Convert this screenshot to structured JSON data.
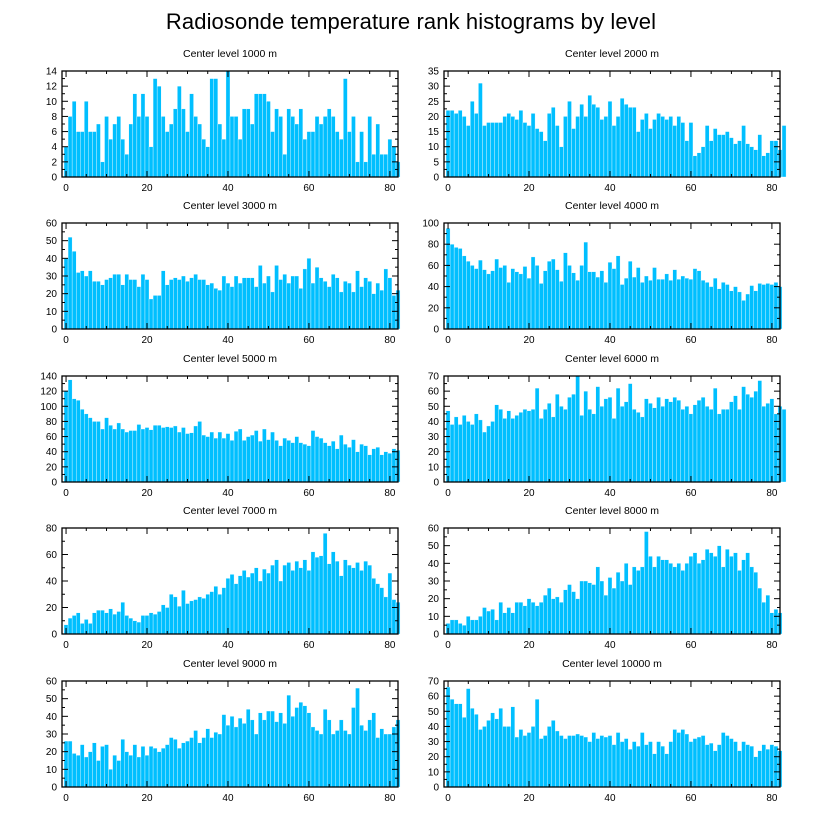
{
  "title": "Radiosonde temperature rank histograms by level",
  "colors": {
    "bar": "#00bfff",
    "axis": "#000000",
    "background": "#ffffff"
  },
  "chart_data": [
    {
      "type": "bar",
      "title": "Center level 1000 m",
      "xlim": [
        -1,
        82
      ],
      "ylim": [
        0,
        14
      ],
      "xticks": [
        0,
        20,
        40,
        60,
        80
      ],
      "yticks": [
        0,
        2,
        4,
        6,
        8,
        10,
        12,
        14
      ],
      "values": [
        4,
        8,
        10,
        6,
        6,
        10,
        6,
        6,
        7,
        2,
        8,
        5,
        7,
        8,
        5,
        3,
        7,
        11,
        8,
        11,
        8,
        4,
        13,
        12,
        8,
        6,
        7,
        9,
        12,
        9,
        6,
        11,
        8,
        7,
        5,
        4,
        13,
        13,
        7,
        5,
        14,
        8,
        8,
        5,
        9,
        9,
        7,
        11,
        11,
        11,
        10,
        6,
        9,
        8,
        3,
        9,
        8,
        7,
        9,
        5,
        6,
        6,
        8,
        7,
        8,
        9,
        8,
        6,
        5,
        13,
        6,
        8,
        2,
        6,
        2,
        8,
        3,
        7,
        3,
        3,
        5,
        4,
        2
      ]
    },
    {
      "type": "bar",
      "title": "Center level 2000 m",
      "xlim": [
        -1,
        82
      ],
      "ylim": [
        0,
        35
      ],
      "xticks": [
        0,
        20,
        40,
        60,
        80
      ],
      "yticks": [
        0,
        5,
        10,
        15,
        20,
        25,
        30,
        35
      ],
      "values": [
        22,
        22,
        21,
        22,
        20,
        17,
        25,
        21,
        31,
        17,
        18,
        18,
        18,
        18,
        20,
        21,
        20,
        19,
        22,
        18,
        17,
        21,
        16,
        15,
        12,
        21,
        23,
        17,
        10,
        20,
        25,
        16,
        20,
        24,
        20,
        27,
        24,
        23,
        19,
        20,
        25,
        17,
        20,
        26,
        24,
        23,
        23,
        15,
        19,
        21,
        16,
        19,
        21,
        20,
        19,
        20,
        17,
        20,
        18,
        12,
        18,
        7,
        8,
        10,
        17,
        12,
        16,
        14,
        14,
        15,
        13,
        11,
        12,
        17,
        11,
        10,
        9,
        14,
        7,
        8,
        12,
        12,
        9,
        17
      ]
    },
    {
      "type": "bar",
      "title": "Center level 3000 m",
      "xlim": [
        -1,
        82
      ],
      "ylim": [
        0,
        60
      ],
      "xticks": [
        0,
        20,
        40,
        60,
        80
      ],
      "yticks": [
        0,
        10,
        20,
        30,
        40,
        50,
        60
      ],
      "values": [
        40,
        52,
        44,
        32,
        33,
        30,
        33,
        27,
        27,
        25,
        28,
        29,
        31,
        31,
        25,
        31,
        28,
        28,
        24,
        31,
        28,
        17,
        19,
        19,
        33,
        25,
        28,
        29,
        28,
        30,
        27,
        29,
        31,
        28,
        28,
        25,
        26,
        23,
        22,
        30,
        26,
        24,
        30,
        26,
        29,
        29,
        29,
        24,
        36,
        26,
        30,
        21,
        36,
        28,
        31,
        26,
        30,
        30,
        23,
        34,
        40,
        26,
        35,
        29,
        27,
        24,
        31,
        29,
        21,
        27,
        26,
        21,
        33,
        24,
        29,
        27,
        20,
        26,
        22,
        34,
        29,
        19,
        22
      ]
    },
    {
      "type": "bar",
      "title": "Center level 4000 m",
      "xlim": [
        -1,
        82
      ],
      "ylim": [
        0,
        100
      ],
      "xticks": [
        0,
        20,
        40,
        60,
        80
      ],
      "yticks": [
        0,
        20,
        40,
        60,
        80,
        100
      ],
      "values": [
        95,
        80,
        77,
        76,
        69,
        64,
        60,
        57,
        65,
        56,
        52,
        55,
        66,
        58,
        60,
        44,
        57,
        54,
        52,
        59,
        48,
        68,
        60,
        43,
        55,
        64,
        66,
        56,
        45,
        72,
        60,
        53,
        46,
        60,
        82,
        54,
        54,
        49,
        55,
        44,
        63,
        57,
        69,
        42,
        48,
        64,
        49,
        58,
        44,
        50,
        46,
        58,
        47,
        47,
        52,
        46,
        56,
        47,
        50,
        48,
        47,
        57,
        55,
        46,
        44,
        40,
        48,
        38,
        44,
        42,
        36,
        40,
        35,
        27,
        33,
        41,
        36,
        43,
        42,
        43,
        42,
        44,
        40
      ]
    },
    {
      "type": "bar",
      "title": "Center level 5000 m",
      "xlim": [
        -1,
        82
      ],
      "ylim": [
        0,
        140
      ],
      "xticks": [
        0,
        20,
        40,
        60,
        80
      ],
      "yticks": [
        0,
        20,
        40,
        60,
        80,
        100,
        120,
        140
      ],
      "values": [
        120,
        135,
        110,
        108,
        96,
        90,
        85,
        80,
        80,
        70,
        85,
        75,
        70,
        78,
        70,
        66,
        68,
        68,
        76,
        70,
        72,
        69,
        75,
        75,
        72,
        73,
        72,
        74,
        66,
        72,
        64,
        65,
        74,
        80,
        62,
        60,
        66,
        58,
        66,
        58,
        64,
        55,
        67,
        70,
        55,
        60,
        62,
        68,
        54,
        70,
        56,
        66,
        55,
        48,
        58,
        55,
        52,
        60,
        52,
        50,
        48,
        68,
        60,
        58,
        52,
        48,
        54,
        44,
        62,
        50,
        46,
        56,
        40,
        50,
        48,
        36,
        44,
        46,
        36,
        40,
        38,
        44,
        42
      ]
    },
    {
      "type": "bar",
      "title": "Center level 6000 m",
      "xlim": [
        -1,
        82
      ],
      "ylim": [
        0,
        70
      ],
      "xticks": [
        0,
        20,
        40,
        60,
        80
      ],
      "yticks": [
        0,
        10,
        20,
        30,
        40,
        50,
        60,
        70
      ],
      "values": [
        47,
        38,
        43,
        38,
        44,
        40,
        38,
        45,
        41,
        33,
        37,
        40,
        51,
        48,
        42,
        47,
        42,
        44,
        46,
        48,
        47,
        48,
        62,
        42,
        48,
        52,
        43,
        58,
        50,
        48,
        56,
        58,
        70,
        44,
        60,
        48,
        45,
        63,
        50,
        55,
        56,
        42,
        62,
        50,
        53,
        65,
        48,
        46,
        43,
        55,
        52,
        49,
        56,
        50,
        55,
        53,
        56,
        54,
        48,
        50,
        45,
        51,
        54,
        56,
        50,
        48,
        62,
        45,
        48,
        48,
        53,
        57,
        48,
        63,
        58,
        56,
        60,
        67,
        50,
        52,
        55,
        45,
        50,
        48
      ]
    },
    {
      "type": "bar",
      "title": "Center level 7000 m",
      "xlim": [
        -1,
        82
      ],
      "ylim": [
        0,
        80
      ],
      "xticks": [
        0,
        20,
        40,
        60,
        80
      ],
      "yticks": [
        0,
        20,
        40,
        60,
        80
      ],
      "values": [
        7,
        12,
        14,
        16,
        8,
        11,
        8,
        16,
        18,
        18,
        16,
        19,
        15,
        17,
        24,
        14,
        12,
        10,
        9,
        14,
        14,
        16,
        15,
        17,
        22,
        20,
        30,
        28,
        21,
        33,
        23,
        25,
        26,
        28,
        27,
        30,
        32,
        36,
        30,
        35,
        42,
        45,
        38,
        44,
        48,
        43,
        46,
        50,
        40,
        49,
        46,
        52,
        56,
        40,
        52,
        54,
        48,
        55,
        50,
        56,
        48,
        62,
        58,
        59,
        76,
        53,
        62,
        55,
        44,
        56,
        52,
        50,
        54,
        48,
        55,
        52,
        42,
        38,
        35,
        28,
        46,
        26,
        24
      ]
    },
    {
      "type": "bar",
      "title": "Center level 8000 m",
      "xlim": [
        -1,
        82
      ],
      "ylim": [
        0,
        60
      ],
      "xticks": [
        0,
        20,
        40,
        60,
        80
      ],
      "yticks": [
        0,
        10,
        20,
        30,
        40,
        50,
        60
      ],
      "values": [
        6,
        8,
        8,
        6,
        5,
        10,
        8,
        8,
        10,
        15,
        13,
        14,
        8,
        18,
        12,
        15,
        12,
        18,
        18,
        16,
        20,
        18,
        16,
        18,
        22,
        26,
        20,
        21,
        18,
        25,
        28,
        24,
        20,
        30,
        30,
        29,
        28,
        38,
        30,
        22,
        32,
        26,
        35,
        30,
        40,
        28,
        38,
        36,
        38,
        58,
        44,
        38,
        44,
        42,
        42,
        40,
        38,
        40,
        36,
        40,
        44,
        46,
        40,
        42,
        48,
        46,
        44,
        50,
        38,
        48,
        44,
        46,
        36,
        42,
        46,
        38,
        35,
        26,
        18,
        22,
        12,
        14,
        12
      ]
    },
    {
      "type": "bar",
      "title": "Center level 9000 m",
      "xlim": [
        -1,
        82
      ],
      "ylim": [
        0,
        60
      ],
      "xticks": [
        0,
        20,
        40,
        60,
        80
      ],
      "yticks": [
        0,
        10,
        20,
        30,
        40,
        50,
        60
      ],
      "values": [
        26,
        26,
        19,
        18,
        24,
        17,
        20,
        25,
        15,
        23,
        24,
        10,
        18,
        15,
        27,
        20,
        18,
        24,
        17,
        23,
        18,
        23,
        22,
        20,
        22,
        24,
        28,
        27,
        22,
        25,
        26,
        28,
        32,
        25,
        28,
        33,
        28,
        31,
        30,
        41,
        35,
        40,
        34,
        39,
        36,
        44,
        38,
        30,
        42,
        38,
        43,
        43,
        37,
        42,
        36,
        52,
        40,
        45,
        48,
        46,
        42,
        34,
        32,
        30,
        44,
        38,
        30,
        32,
        38,
        32,
        30,
        45,
        56,
        35,
        32,
        38,
        42,
        28,
        33,
        30,
        30,
        34,
        38
      ]
    },
    {
      "type": "bar",
      "title": "Center level 10000 m",
      "xlim": [
        -1,
        82
      ],
      "ylim": [
        0,
        70
      ],
      "xticks": [
        0,
        20,
        40,
        60,
        80
      ],
      "yticks": [
        0,
        10,
        20,
        30,
        40,
        50,
        60,
        70
      ],
      "values": [
        66,
        58,
        55,
        55,
        46,
        65,
        52,
        48,
        38,
        40,
        44,
        49,
        45,
        52,
        40,
        40,
        53,
        33,
        38,
        34,
        36,
        40,
        58,
        32,
        34,
        40,
        44,
        37,
        34,
        32,
        34,
        34,
        35,
        34,
        33,
        30,
        36,
        32,
        34,
        33,
        34,
        28,
        36,
        30,
        32,
        25,
        30,
        27,
        36,
        28,
        30,
        22,
        30,
        27,
        22,
        30,
        38,
        36,
        38,
        35,
        30,
        32,
        33,
        34,
        28,
        29,
        24,
        28,
        36,
        34,
        32,
        30,
        24,
        30,
        28,
        27,
        20,
        24,
        28,
        25,
        28,
        27,
        24
      ]
    }
  ]
}
